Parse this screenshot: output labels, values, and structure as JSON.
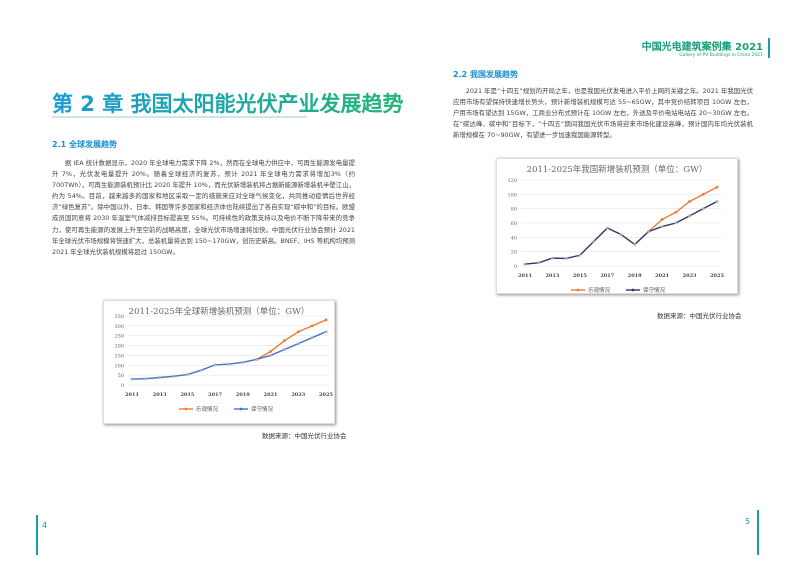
{
  "header": {
    "title": "中国光电建筑案例集 2021",
    "subtitle": "Gallery of PV Buildings in China 2021"
  },
  "left_page": {
    "chapter_title": "第 2 章  我国太阳能光伏产业发展趋势",
    "section_heading": "2.1 全球发展趋势",
    "paragraph": "据 IEA 统计数据显示，2020 年全球电力需求下降 2%，然而在全球电力供应中，可再生能源发电量提升 7%，光伏发电量提升 20%。随着全球经济的复苏，预计 2021 年全球电力需求将增加3%（约 700TWh），可再生能源装机预计比 2020 年提升 10%，而光伏新增装机将占据新能源新增装机半壁江山，约为 54%。目前，越来越多的国家和地区采取一定的措施来应对全球气候变化，共同推动疫情后世界经济“绿色复苏”。除中国以外，日本、韩国等许多国家和经济体也陆续提出了各自实现“碳中和”的目标。欧盟成员国同意将 2030 年温室气体减排目标提高至 55%。可持续性的政策支持以及电价不断下降带来的竞争力，使可再生能源的发展上升至空前的战略高度，全球光伏市场增速将加快。中国光伏行业协会预计 2021 年全球光伏市场规模将快速扩大，总装机量将达到 150~170GW，创历史新高。BNEF、IHS 等机构均预测 2021 年全球光伏装机规模将超过 150GW。",
    "source": "数据来源：中国光伏行业协会",
    "page_number": "4"
  },
  "right_page": {
    "section_heading": "2.2 我国发展趋势",
    "paragraph": "2021 年是“十四五”规划的开局之年，也是我国光伏发电进入平价上网的关键之年。2021 年我国光伏应用市场有望保持快速增长势头，预计新增装机规模可达 55~65GW，其中竞价结转项目 10GW 左右，户用市场有望达到 15GW，工商业分布式预计在 10GW 左右，外送及平价电站电站在 20~30GW 左右。在“碳达峰、碳中和”目标下，“十四五”期间我国光伏市场将迎来市场化建设高峰，预计国内年均光伏装机新增规模在 70~90GW，有望进一步加速我国能源转型。",
    "source": "数据来源：中国光伏行业协会",
    "page_number": "5"
  },
  "colors": {
    "optimistic": "#ed7d31",
    "conservative_global": "#4472c4",
    "conservative_china": "#2f3a5c",
    "accent": "#1aa0a0"
  },
  "chart_data": [
    {
      "type": "line",
      "title": "2011-2025年全球新增装机预测（单位：GW）",
      "x": [
        2011,
        2012,
        2013,
        2014,
        2015,
        2016,
        2017,
        2018,
        2019,
        2020,
        2021,
        2022,
        2023,
        2024,
        2025
      ],
      "x_tick_labels": [
        "2011",
        "2013",
        "2015",
        "2017",
        "2019",
        "2021",
        "2023",
        "2025"
      ],
      "ylim": [
        0,
        350
      ],
      "y_ticks": [
        0,
        50,
        100,
        150,
        200,
        250,
        300,
        350
      ],
      "grid": true,
      "legend": "bottom",
      "series": [
        {
          "name": "乐观情况",
          "values": [
            null,
            null,
            null,
            null,
            null,
            null,
            null,
            null,
            null,
            130,
            170,
            225,
            270,
            300,
            330
          ]
        },
        {
          "name": "保守情况",
          "values": [
            30,
            32,
            38,
            44,
            53,
            75,
            102,
            106,
            115,
            130,
            150,
            180,
            210,
            240,
            270
          ]
        }
      ]
    },
    {
      "type": "line",
      "title": "2011-2025年我国新增装机预测（单位：GW）",
      "x": [
        2011,
        2012,
        2013,
        2014,
        2015,
        2016,
        2017,
        2018,
        2019,
        2020,
        2021,
        2022,
        2023,
        2024,
        2025
      ],
      "x_tick_labels": [
        "2011",
        "2013",
        "2015",
        "2017",
        "2019",
        "2021",
        "2023",
        "2025"
      ],
      "ylim": [
        0,
        120
      ],
      "y_ticks": [
        0,
        20,
        40,
        60,
        80,
        100,
        120
      ],
      "grid": true,
      "legend": "bottom",
      "series": [
        {
          "name": "乐观情况",
          "values": [
            null,
            null,
            null,
            null,
            null,
            null,
            null,
            null,
            null,
            48,
            65,
            75,
            90,
            100,
            110
          ]
        },
        {
          "name": "保守情况",
          "values": [
            2.7,
            4.5,
            11,
            10.6,
            15,
            34,
            53,
            44,
            30,
            48,
            55,
            60,
            70,
            80,
            90
          ]
        }
      ]
    }
  ]
}
